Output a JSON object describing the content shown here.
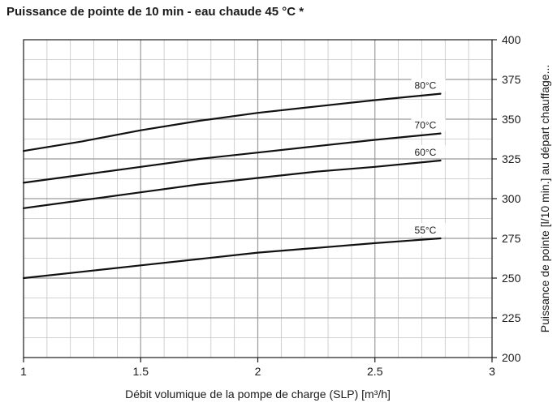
{
  "chart_data": {
    "type": "line",
    "title": "Puissance de pointe de 10 min - eau chaude 45 °C *",
    "xlabel": "Débit volumique de la pompe de charge (SLP) [m³/h]",
    "ylabel": "Puissance de pointe [l/10 min.] au départ chauffage...",
    "xlim": [
      1,
      3
    ],
    "ylim": [
      200,
      400
    ],
    "xticks": [
      1,
      1.5,
      2,
      2.5,
      3
    ],
    "xtick_labels": [
      "1",
      "1.5",
      "2",
      "2.5",
      "3"
    ],
    "yticks": [
      200,
      225,
      250,
      275,
      300,
      325,
      350,
      375,
      400
    ],
    "ytick_labels": [
      "200",
      "225",
      "250",
      "275",
      "300",
      "325",
      "350",
      "375",
      "400"
    ],
    "grid": true,
    "series": [
      {
        "name": "80°C",
        "x": [
          1,
          1.25,
          1.5,
          1.75,
          2,
          2.25,
          2.5,
          2.78
        ],
        "y": [
          330,
          336,
          343,
          349,
          354,
          358,
          362,
          366
        ]
      },
      {
        "name": "70°C",
        "x": [
          1,
          1.25,
          1.5,
          1.75,
          2,
          2.25,
          2.5,
          2.78
        ],
        "y": [
          310,
          315,
          320,
          325,
          329,
          333,
          337,
          341
        ]
      },
      {
        "name": "60°C",
        "x": [
          1,
          1.25,
          1.5,
          1.75,
          2,
          2.25,
          2.5,
          2.78
        ],
        "y": [
          294,
          299,
          304,
          309,
          313,
          317,
          320,
          324
        ]
      },
      {
        "name": "55°C",
        "x": [
          1,
          1.25,
          1.5,
          1.75,
          2,
          2.25,
          2.5,
          2.78
        ],
        "y": [
          250,
          254,
          258,
          262,
          266,
          269,
          272,
          275
        ]
      }
    ]
  }
}
